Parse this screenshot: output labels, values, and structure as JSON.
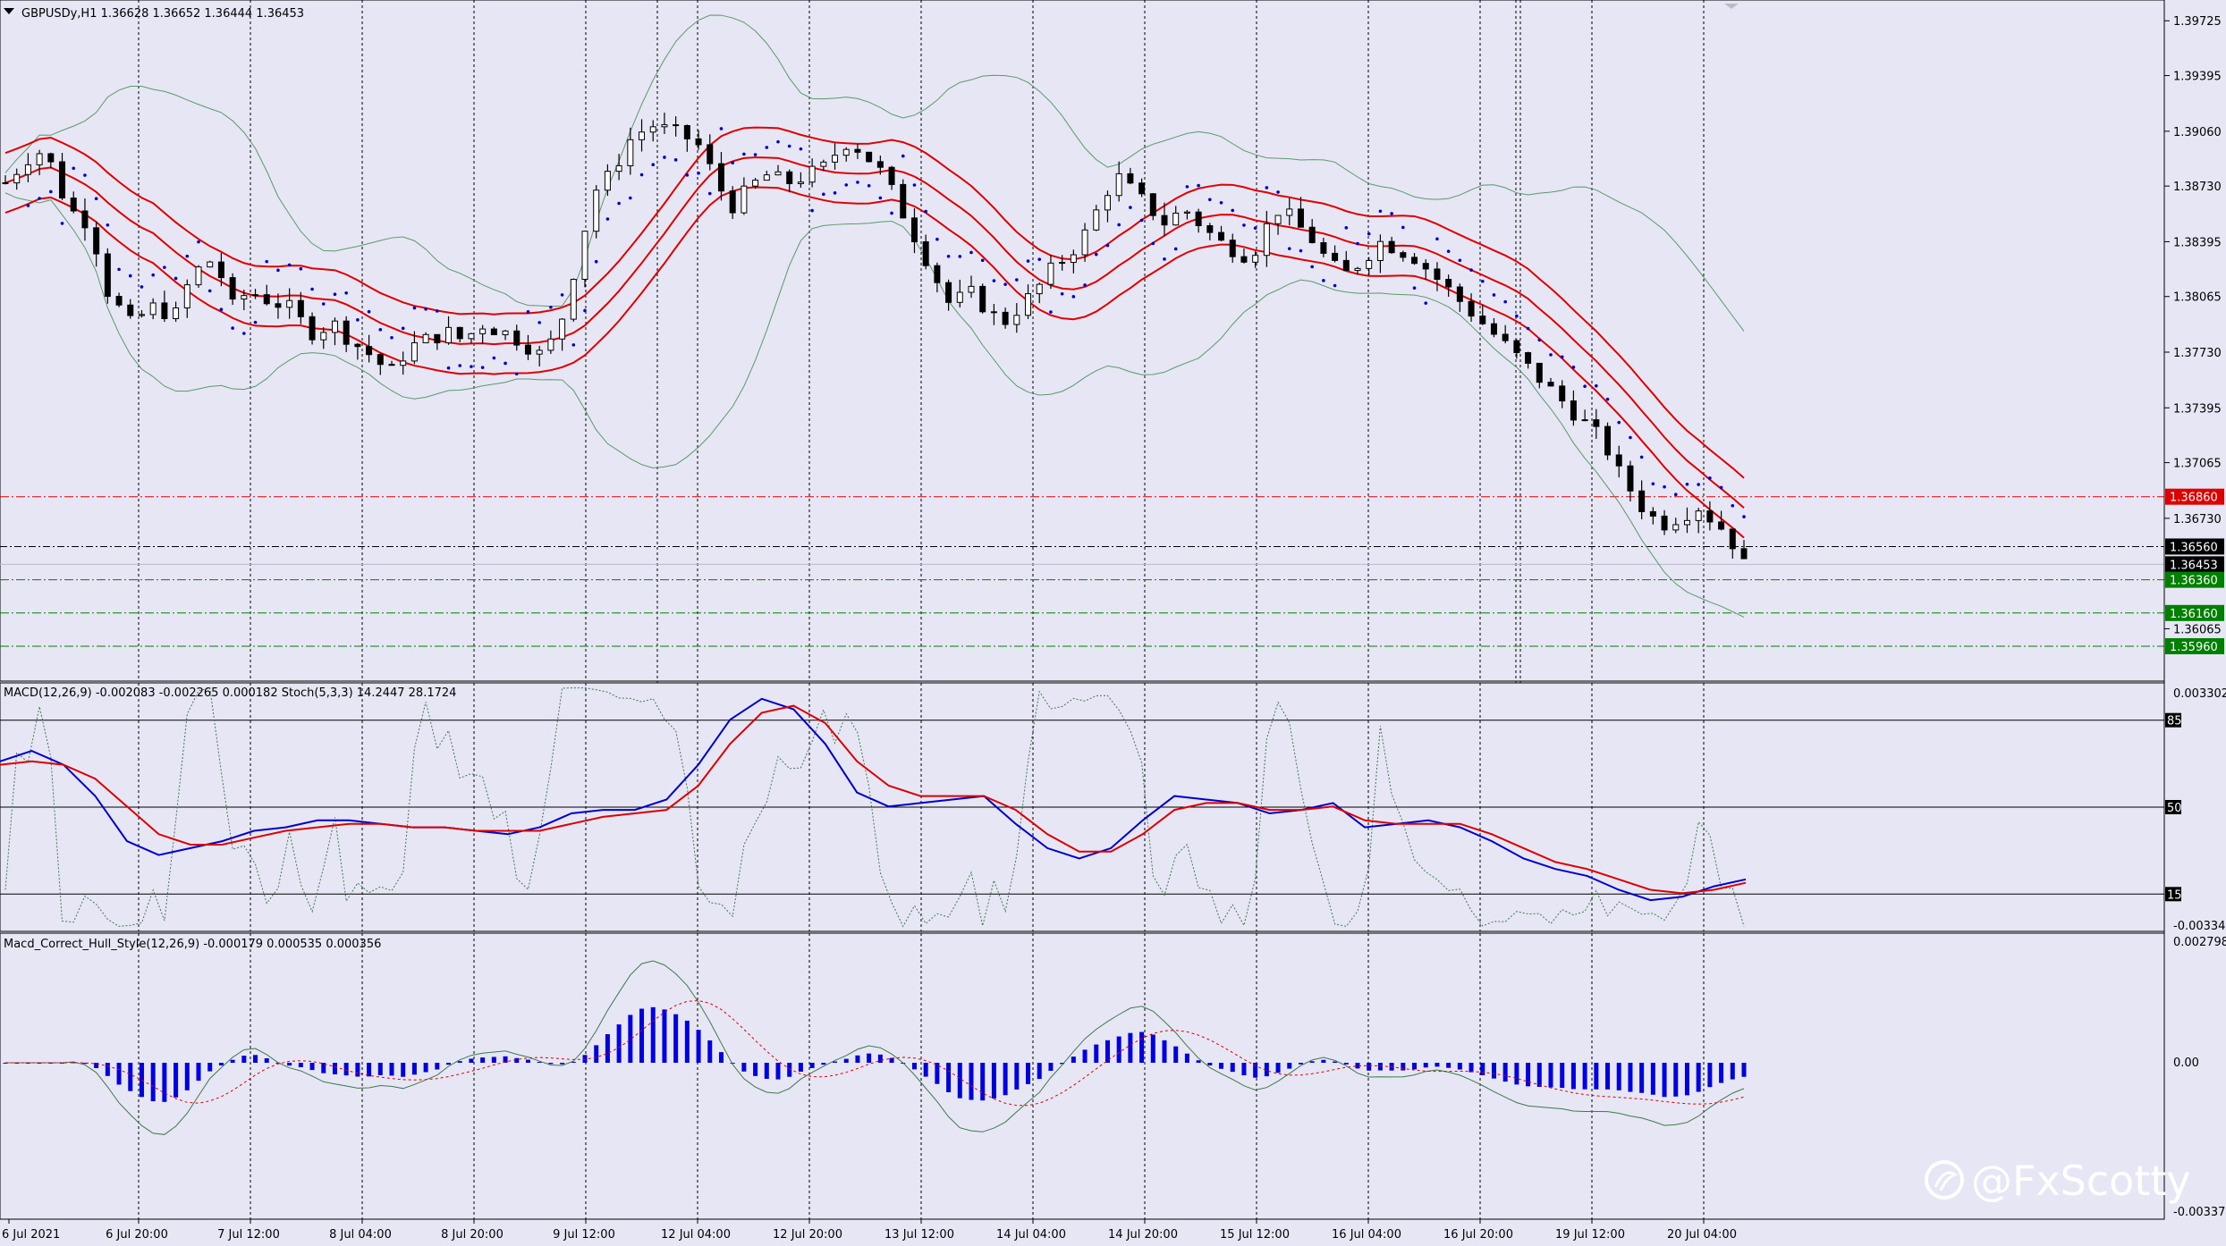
{
  "chart_data": [
    {
      "type": "candlestick",
      "symbol_title": "GBPUSDy,H1  1.36628 1.36652 1.36444 1.36453",
      "ohlc_current": {
        "open": 1.36628,
        "high": 1.36652,
        "low": 1.36444,
        "close": 1.36453
      },
      "ylim": [
        1.3575,
        1.3985
      ],
      "y_ticks": [
        "1.39725",
        "1.39395",
        "1.39060",
        "1.38730",
        "1.38395",
        "1.38065",
        "1.37730",
        "1.37395",
        "1.37065",
        "1.36730",
        "1.36065"
      ],
      "y_tick_values": [
        1.39725,
        1.39395,
        1.3906,
        1.3873,
        1.38395,
        1.38065,
        1.3773,
        1.37395,
        1.37065,
        1.3673,
        1.36065
      ],
      "x_ticks": [
        "6 Jul 2021",
        "6 Jul 20:00",
        "7 Jul 12:00",
        "8 Jul 04:00",
        "8 Jul 20:00",
        "9 Jul 12:00",
        "12 Jul 04:00",
        "12 Jul 20:00",
        "13 Jul 12:00",
        "14 Jul 04:00",
        "14 Jul 20:00",
        "15 Jul 12:00",
        "16 Jul 04:00",
        "16 Jul 20:00",
        "19 Jul 12:00",
        "20 Jul 04:00"
      ],
      "price_lines": [
        {
          "value": 1.3686,
          "label": "1.36860",
          "color": "#e00000"
        },
        {
          "value": 1.3656,
          "label": "1.36560",
          "color": "#000000"
        },
        {
          "value": 1.36453,
          "label": "1.36453",
          "color": "#000000"
        },
        {
          "value": 1.3636,
          "label": "1.36360",
          "color": "#008000"
        },
        {
          "value": 1.3616,
          "label": "1.36160",
          "color": "#008000"
        },
        {
          "value": 1.3596,
          "label": "1.35960",
          "color": "#008000"
        }
      ],
      "close_path": [
        [
          0,
          1.3875
        ],
        [
          8,
          1.389
        ],
        [
          14,
          1.3895
        ],
        [
          22,
          1.386
        ],
        [
          30,
          1.385
        ],
        [
          36,
          1.381
        ],
        [
          44,
          1.379
        ],
        [
          52,
          1.38
        ],
        [
          60,
          1.3795
        ],
        [
          66,
          1.382
        ],
        [
          74,
          1.383
        ],
        [
          80,
          1.38
        ],
        [
          86,
          1.381
        ],
        [
          92,
          1.3805
        ],
        [
          100,
          1.38
        ],
        [
          108,
          1.3785
        ],
        [
          116,
          1.379
        ],
        [
          122,
          1.378
        ],
        [
          130,
          1.377
        ],
        [
          136,
          1.376
        ],
        [
          142,
          1.3775
        ],
        [
          148,
          1.378
        ],
        [
          156,
          1.3785
        ],
        [
          162,
          1.378
        ],
        [
          168,
          1.379
        ],
        [
          176,
          1.3785
        ],
        [
          182,
          1.378
        ],
        [
          186,
          1.3775
        ],
        [
          190,
          1.377
        ],
        [
          196,
          1.379
        ],
        [
          202,
          1.383
        ],
        [
          208,
          1.387
        ],
        [
          214,
          1.388
        ],
        [
          220,
          1.39
        ],
        [
          228,
          1.391
        ],
        [
          236,
          1.3905
        ],
        [
          244,
          1.39
        ],
        [
          250,
          1.388
        ],
        [
          256,
          1.386
        ],
        [
          262,
          1.387
        ],
        [
          268,
          1.388
        ],
        [
          276,
          1.3875
        ],
        [
          284,
          1.388
        ],
        [
          290,
          1.3885
        ],
        [
          296,
          1.39
        ],
        [
          302,
          1.3895
        ],
        [
          310,
          1.388
        ],
        [
          316,
          1.386
        ],
        [
          322,
          1.384
        ],
        [
          328,
          1.382
        ],
        [
          334,
          1.38
        ],
        [
          340,
          1.381
        ],
        [
          346,
          1.38
        ],
        [
          352,
          1.379
        ],
        [
          358,
          1.38
        ],
        [
          364,
          1.381
        ],
        [
          368,
          1.382
        ],
        [
          374,
          1.383
        ],
        [
          380,
          1.384
        ],
        [
          386,
          1.386
        ],
        [
          392,
          1.388
        ],
        [
          398,
          1.387
        ],
        [
          404,
          1.386
        ],
        [
          410,
          1.385
        ],
        [
          416,
          1.386
        ],
        [
          422,
          1.385
        ],
        [
          428,
          1.384
        ],
        [
          434,
          1.3835
        ],
        [
          440,
          1.383
        ],
        [
          444,
          1.3845
        ],
        [
          450,
          1.386
        ],
        [
          456,
          1.385
        ],
        [
          462,
          1.384
        ],
        [
          468,
          1.3825
        ],
        [
          474,
          1.382
        ],
        [
          480,
          1.383
        ],
        [
          486,
          1.384
        ],
        [
          492,
          1.3835
        ],
        [
          498,
          1.383
        ],
        [
          504,
          1.382
        ],
        [
          510,
          1.381
        ],
        [
          516,
          1.38
        ],
        [
          522,
          1.379
        ],
        [
          528,
          1.378
        ],
        [
          534,
          1.377
        ],
        [
          540,
          1.376
        ],
        [
          546,
          1.375
        ],
        [
          552,
          1.374
        ],
        [
          558,
          1.373
        ],
        [
          564,
          1.372
        ],
        [
          570,
          1.37
        ],
        [
          576,
          1.3685
        ],
        [
          580,
          1.3675
        ],
        [
          586,
          1.367
        ],
        [
          592,
          1.3675
        ],
        [
          598,
          1.368
        ],
        [
          604,
          1.367
        ],
        [
          608,
          1.3665
        ],
        [
          614,
          1.3645
        ]
      ],
      "overlays": [
        "Bollinger Bands",
        "Envelopes",
        "Parabolic SAR"
      ]
    },
    {
      "type": "line",
      "title": "MACD(12,26,9) -0.002083 -0.002265 0.000182  Stoch(5,3,3) 14.2447 28.1724",
      "y_ticks": [
        "0.003302",
        "-0.00334"
      ],
      "levels": [
        "85",
        "50",
        "15"
      ],
      "series": [
        {
          "name": "MACD",
          "color": "#0000cc",
          "values": [
            0.0013,
            0.0016,
            0.0012,
            0.0003,
            -0.001,
            -0.0014,
            -0.0012,
            -0.001,
            -0.0007,
            -0.0006,
            -0.0004,
            -0.0004,
            -0.0005,
            -0.0006,
            -0.0006,
            -0.0007,
            -0.0008,
            -0.0006,
            -0.0002,
            -0.0001,
            -0.0001,
            0.0002,
            0.0012,
            0.0025,
            0.0031,
            0.0028,
            0.0018,
            0.0004,
            0.0,
            0.0001,
            0.0002,
            0.0003,
            -0.0005,
            -0.0012,
            -0.0015,
            -0.0012,
            -0.0004,
            0.0003,
            0.0002,
            0.0001,
            -0.0002,
            -0.0001,
            0.0001,
            -0.0006,
            -0.0005,
            -0.0004,
            -0.0006,
            -0.001,
            -0.0015,
            -0.0018,
            -0.002,
            -0.0024,
            -0.0027,
            -0.0026,
            -0.0023,
            -0.0021
          ]
        },
        {
          "name": "Signal",
          "color": "#dd0000",
          "values": [
            0.0012,
            0.0013,
            0.0012,
            0.0008,
            0.0,
            -0.0008,
            -0.0011,
            -0.0011,
            -0.0009,
            -0.0007,
            -0.0006,
            -0.0005,
            -0.0005,
            -0.0006,
            -0.0006,
            -0.0007,
            -0.0007,
            -0.0007,
            -0.0005,
            -0.0003,
            -0.0002,
            -0.0001,
            0.0006,
            0.0018,
            0.0027,
            0.0029,
            0.0024,
            0.0013,
            0.0006,
            0.0003,
            0.0003,
            0.0003,
            -0.0001,
            -0.0008,
            -0.0013,
            -0.0013,
            -0.0008,
            -0.0001,
            0.0001,
            0.0001,
            -0.0001,
            -0.0001,
            0.0,
            -0.0004,
            -0.0005,
            -0.0005,
            -0.0005,
            -0.0008,
            -0.0012,
            -0.0016,
            -0.0018,
            -0.0021,
            -0.0024,
            -0.0025,
            -0.0024,
            -0.0022
          ]
        }
      ]
    },
    {
      "type": "bar",
      "title": "Macd_Correct_Hull_Style(12,26,9) -0.000179 0.000535 0.000356",
      "y_ticks": [
        "0.002798",
        "0.00",
        "-0.003376"
      ],
      "ylim": [
        -0.003376,
        0.002798
      ],
      "bar_color": "#0000e0"
    }
  ],
  "watermark": "@FxScotty"
}
